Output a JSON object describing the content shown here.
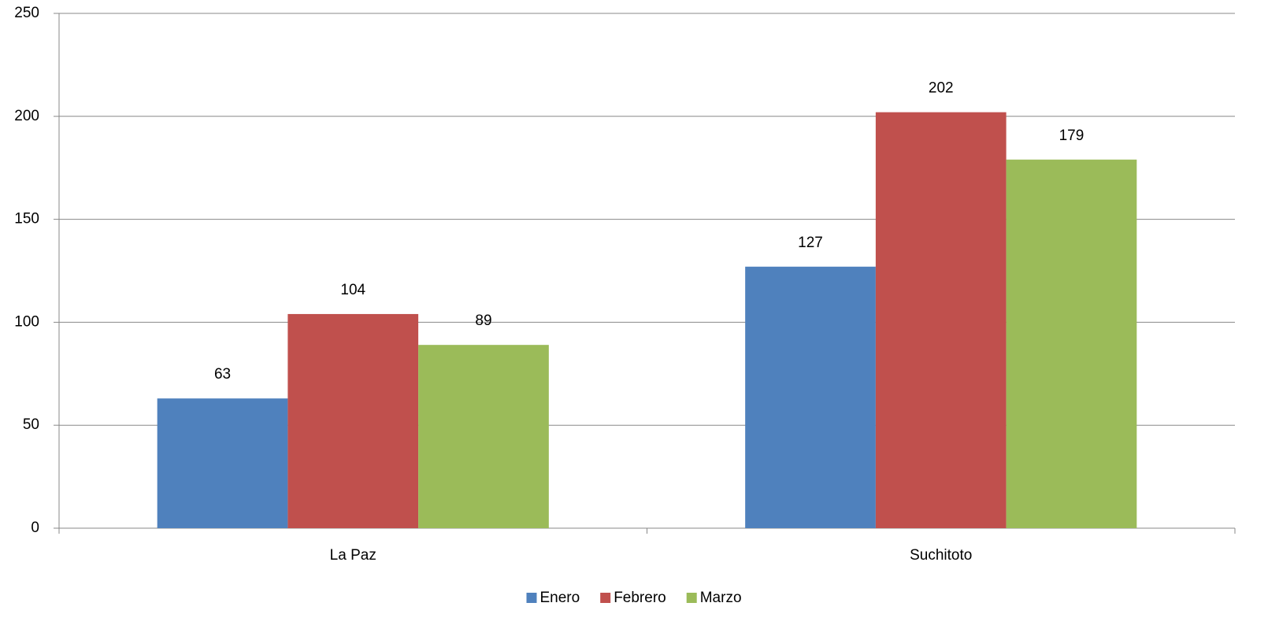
{
  "chart_data": {
    "type": "bar",
    "categories": [
      "La Paz",
      "Suchitoto"
    ],
    "series": [
      {
        "name": "Enero",
        "color": "#4f81bd",
        "values": [
          63,
          127
        ]
      },
      {
        "name": "Febrero",
        "color": "#c0504d",
        "values": [
          104,
          202
        ]
      },
      {
        "name": "Marzo",
        "color": "#9bbb59",
        "values": [
          89,
          179
        ]
      }
    ],
    "ylim": [
      0,
      250
    ],
    "yticks": [
      0,
      50,
      100,
      150,
      200,
      250
    ],
    "grid": true,
    "legend": "bottom"
  }
}
